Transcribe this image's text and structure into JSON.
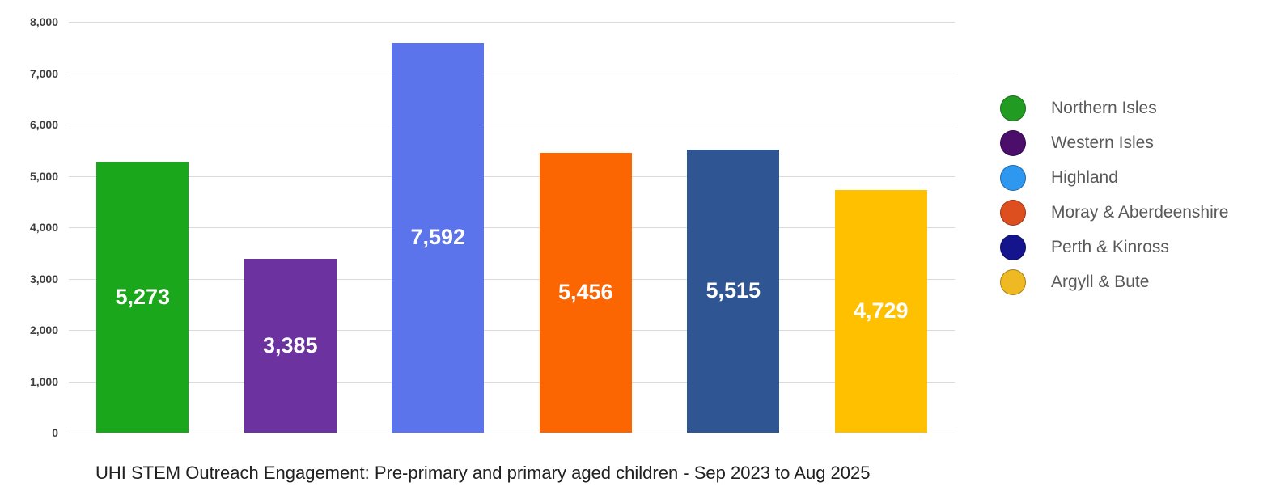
{
  "chart_data": {
    "type": "bar",
    "title": "UHI STEM Outreach Engagement: Pre-primary and primary aged children - Sep 2023 to Aug 2025",
    "xlabel": "",
    "ylabel": "",
    "ylim": [
      0,
      8000
    ],
    "grid": true,
    "legend_position": "right",
    "categories": [
      "Northern Isles",
      "Western Isles",
      "Highland",
      "Moray & Aberdeenshire",
      "Perth & Kinross",
      "Argyll & Bute"
    ],
    "values": [
      5273,
      3385,
      7592,
      5456,
      5515,
      4729
    ],
    "value_labels": [
      "5,273",
      "3,385",
      "7,592",
      "5,456",
      "5,515",
      "4,729"
    ],
    "bar_colors": [
      "#1BA71B",
      "#6C32A0",
      "#5B74EC",
      "#FB6502",
      "#2F5592",
      "#FFC000"
    ],
    "legend_colors": [
      "#219B21",
      "#4B0E6B",
      "#2E98F0",
      "#DD4F1E",
      "#14148C",
      "#EEB922"
    ],
    "ytick_labels": [
      "0",
      "1,000",
      "2,000",
      "3,000",
      "4,000",
      "5,000",
      "6,000",
      "7,000",
      "8,000"
    ],
    "ytick_values": [
      0,
      1000,
      2000,
      3000,
      4000,
      5000,
      6000,
      7000,
      8000
    ],
    "colors": {
      "background": "#ffffff",
      "gridline": "#dadada",
      "tick_text": "#3f3f3f",
      "legend_text": "#595959",
      "caption_text": "#212121",
      "bar_value_text": "#ffffff"
    }
  }
}
